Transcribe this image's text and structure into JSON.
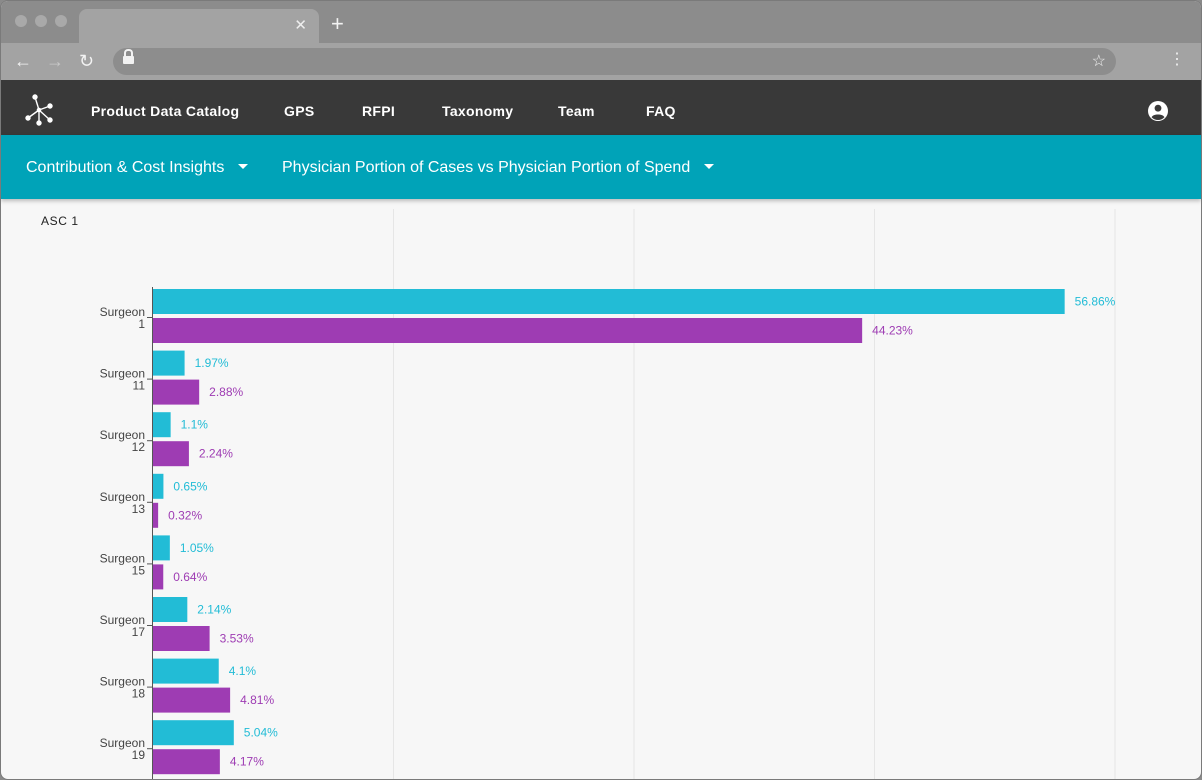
{
  "nav": {
    "items": [
      "Product Data Catalog",
      "GPS",
      "RFPI",
      "Taxonomy",
      "Team",
      "FAQ"
    ]
  },
  "subnav": {
    "menu1": "Contribution & Cost Insights",
    "menu2": "Physician Portion of Cases vs Physician Portion of Spend"
  },
  "facility": "ASC 1",
  "colors": {
    "cases": "#22bcd6",
    "spend": "#9e3cb3",
    "appbar": "#393939",
    "subbar": "#00a3b8"
  },
  "icons": [
    "back-arrow",
    "forward-arrow",
    "reload",
    "lock",
    "star",
    "kebab-menu",
    "network-logo",
    "account-circle",
    "caret-down"
  ],
  "chart_data": {
    "type": "bar",
    "orientation": "horizontal",
    "categories": [
      [
        "Surgeon",
        "1"
      ],
      [
        "Surgeon",
        "11"
      ],
      [
        "Surgeon",
        "12"
      ],
      [
        "Surgeon",
        "13"
      ],
      [
        "Surgeon",
        "15"
      ],
      [
        "Surgeon",
        "17"
      ],
      [
        "Surgeon",
        "18"
      ],
      [
        "Surgeon",
        "19"
      ]
    ],
    "series": [
      {
        "values": [
          56.86,
          1.97,
          1.1,
          0.65,
          1.05,
          2.14,
          4.1,
          5.04
        ],
        "labels": [
          "56.86%",
          "1.97%",
          "1.1%",
          "0.65%",
          "1.05%",
          "2.14%",
          "4.1%",
          "5.04%"
        ],
        "color": "#22bcd6"
      },
      {
        "values": [
          44.23,
          2.88,
          2.24,
          0.32,
          0.64,
          3.53,
          4.81,
          4.17
        ],
        "labels": [
          "44.23%",
          "2.88%",
          "2.24%",
          "0.32%",
          "0.64%",
          "3.53%",
          "4.81%",
          "4.17%"
        ],
        "color": "#9e3cb3"
      }
    ],
    "xlim": [
      0,
      60
    ],
    "grid": true
  }
}
